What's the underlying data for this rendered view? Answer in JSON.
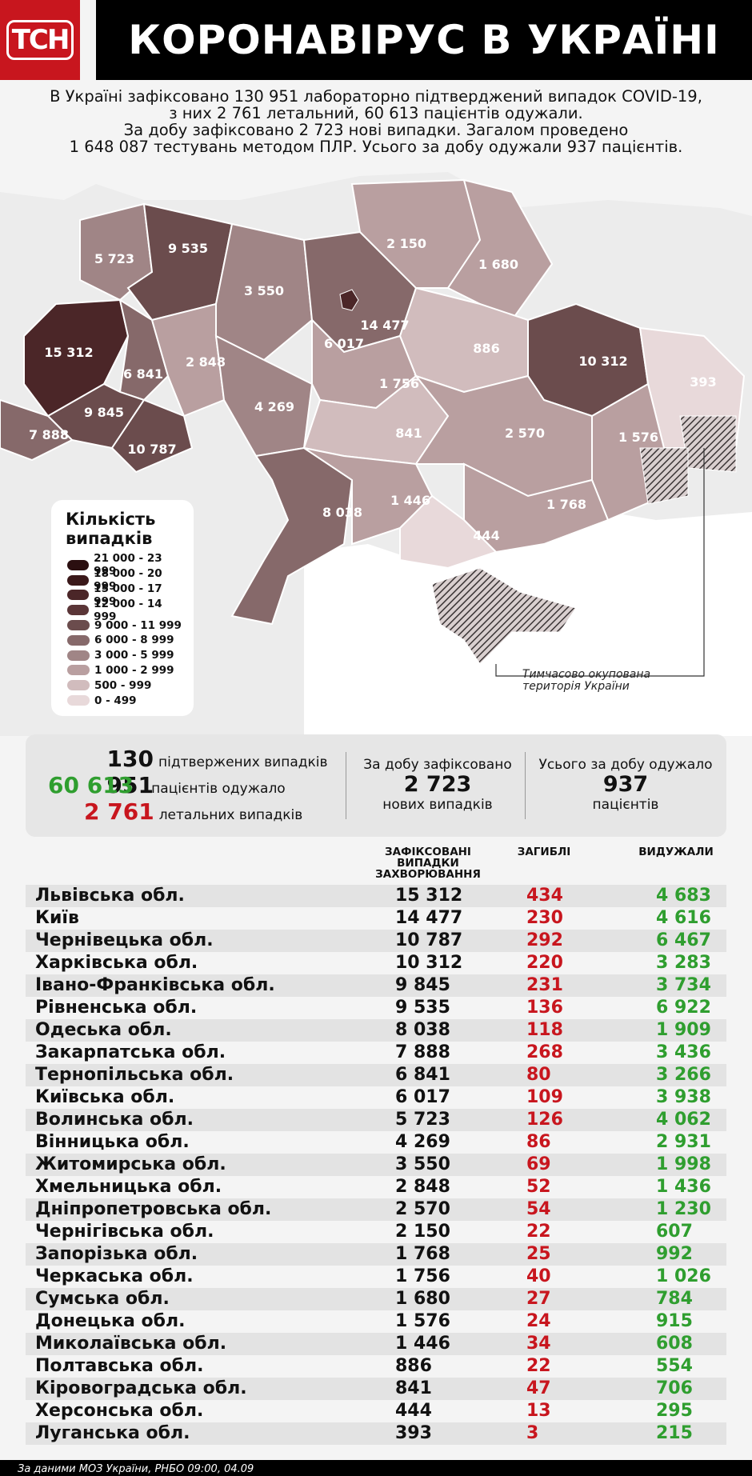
{
  "header": {
    "logo": "ТСН",
    "title": "КОРОНАВІРУС В УКРАЇНІ"
  },
  "intro": {
    "line1": "В Україні зафіксовано 130 951 лабораторно підтверджений випадок COVID-19,",
    "line2": "з них 2 761 летальний, 60 613 пацієнтів одужали.",
    "line3": "За добу зафіксовано 2 723 нові випадки. Загалом проведено",
    "line4": "1 648 087 тестувань методом ПЛР. Усього за добу одужали 937 пацієнтів."
  },
  "map": {
    "regions": [
      {
        "value": "15 312"
      },
      {
        "value": "5 723"
      },
      {
        "value": "9 535"
      },
      {
        "value": "3 550"
      },
      {
        "value": "2 150"
      },
      {
        "value": "1 680"
      },
      {
        "value": "6 017"
      },
      {
        "value": "14 477"
      },
      {
        "value": "886"
      },
      {
        "value": "10 312"
      },
      {
        "value": "393"
      },
      {
        "value": "6 841"
      },
      {
        "value": "2 848"
      },
      {
        "value": "1 756"
      },
      {
        "value": "9 845"
      },
      {
        "value": "4 269"
      },
      {
        "value": "7 888"
      },
      {
        "value": "10 787"
      },
      {
        "value": "841"
      },
      {
        "value": "2 570"
      },
      {
        "value": "1 576"
      },
      {
        "value": "8 038"
      },
      {
        "value": "1 446"
      },
      {
        "value": "1 768"
      },
      {
        "value": "444"
      }
    ],
    "occupied_note_line1": "Тимчасово окупована",
    "occupied_note_line2": "територія України"
  },
  "legend": {
    "title_line1": "Кількість",
    "title_line2": "випадків",
    "items": [
      {
        "label": "21 000 - 23 999",
        "color": "#2b0f10"
      },
      {
        "label": "18 000 - 20 999",
        "color": "#3a1819"
      },
      {
        "label": "15 000 - 17 999",
        "color": "#4b2628"
      },
      {
        "label": "12 000 - 14 999",
        "color": "#5a3537"
      },
      {
        "label": "9 000 - 11 999",
        "color": "#6b4c4d"
      },
      {
        "label": "6 000 - 8 999",
        "color": "#86696a"
      },
      {
        "label": "3 000 - 5 999",
        "color": "#a08586"
      },
      {
        "label": "1 000 - 2 999",
        "color": "#b99fa0"
      },
      {
        "label": "500 - 999",
        "color": "#d1bcbd"
      },
      {
        "label": "0 - 499",
        "color": "#e8d9da"
      }
    ]
  },
  "summary": {
    "confirmed_num": "130 951",
    "confirmed_lbl": "підтвержених випадків",
    "recovered_num": "60 613",
    "recovered_lbl": "пацієнтів одужало",
    "deaths_num": "2 761",
    "deaths_lbl": "летальних випадків",
    "day_a": "За добу зафіксовано",
    "day_b": "2 723",
    "day_c": "нових випадків",
    "rec_a": "Усього за добу одужало",
    "rec_b": "937",
    "rec_c": "пацієнтів"
  },
  "table": {
    "col_cases_1": "ЗАФІКСОВАНІ",
    "col_cases_2": "ВИПАДКИ",
    "col_cases_3": "ЗАХВОРЮВАННЯ",
    "col_deaths": "ЗАГИБЛІ",
    "col_recovered": "ВИДУЖАЛИ",
    "rows": [
      {
        "name": "Львівська обл.",
        "cases": "15 312",
        "deaths": "434",
        "recovered": "4 683"
      },
      {
        "name": "Київ",
        "cases": "14 477",
        "deaths": "230",
        "recovered": "4 616"
      },
      {
        "name": "Чернівецька обл.",
        "cases": "10 787",
        "deaths": "292",
        "recovered": "6 467"
      },
      {
        "name": "Харківська обл.",
        "cases": "10 312",
        "deaths": "220",
        "recovered": "3 283"
      },
      {
        "name": "Івано-Франківська обл.",
        "cases": "9 845",
        "deaths": "231",
        "recovered": "3 734"
      },
      {
        "name": "Рівненська обл.",
        "cases": "9 535",
        "deaths": "136",
        "recovered": "6 922"
      },
      {
        "name": "Одеська обл.",
        "cases": "8 038",
        "deaths": "118",
        "recovered": "1 909"
      },
      {
        "name": "Закарпатська обл.",
        "cases": "7 888",
        "deaths": "268",
        "recovered": "3 436"
      },
      {
        "name": "Тернопільська обл.",
        "cases": "6 841",
        "deaths": "80",
        "recovered": "3 266"
      },
      {
        "name": "Київська обл.",
        "cases": "6 017",
        "deaths": "109",
        "recovered": "3 938"
      },
      {
        "name": "Волинська обл.",
        "cases": "5 723",
        "deaths": "126",
        "recovered": "4 062"
      },
      {
        "name": "Вінницька обл.",
        "cases": "4 269",
        "deaths": "86",
        "recovered": "2 931"
      },
      {
        "name": "Житомирська обл.",
        "cases": "3 550",
        "deaths": "69",
        "recovered": "1 998"
      },
      {
        "name": "Хмельницька обл.",
        "cases": "2 848",
        "deaths": "52",
        "recovered": "1 436"
      },
      {
        "name": "Дніпропетровська обл.",
        "cases": "2 570",
        "deaths": "54",
        "recovered": "1 230"
      },
      {
        "name": "Чернігівська обл.",
        "cases": "2 150",
        "deaths": "22",
        "recovered": "607"
      },
      {
        "name": "Запорізька обл.",
        "cases": "1 768",
        "deaths": "25",
        "recovered": "992"
      },
      {
        "name": "Черкаська обл.",
        "cases": "1 756",
        "deaths": "40",
        "recovered": "1 026"
      },
      {
        "name": "Сумська обл.",
        "cases": "1 680",
        "deaths": "27",
        "recovered": "784"
      },
      {
        "name": "Донецька обл.",
        "cases": "1 576",
        "deaths": "24",
        "recovered": "915"
      },
      {
        "name": "Миколаївська обл.",
        "cases": "1 446",
        "deaths": "34",
        "recovered": "608"
      },
      {
        "name": "Полтавська обл.",
        "cases": "886",
        "deaths": "22",
        "recovered": "554"
      },
      {
        "name": "Кіровоградська обл.",
        "cases": "841",
        "deaths": "47",
        "recovered": "706"
      },
      {
        "name": "Херсонська обл.",
        "cases": "444",
        "deaths": "13",
        "recovered": "295"
      },
      {
        "name": "Луганська обл.",
        "cases": "393",
        "deaths": "3",
        "recovered": "215"
      }
    ]
  },
  "footer": {
    "source": "За даними МОЗ України, РНБО  09:00, 04.09"
  }
}
